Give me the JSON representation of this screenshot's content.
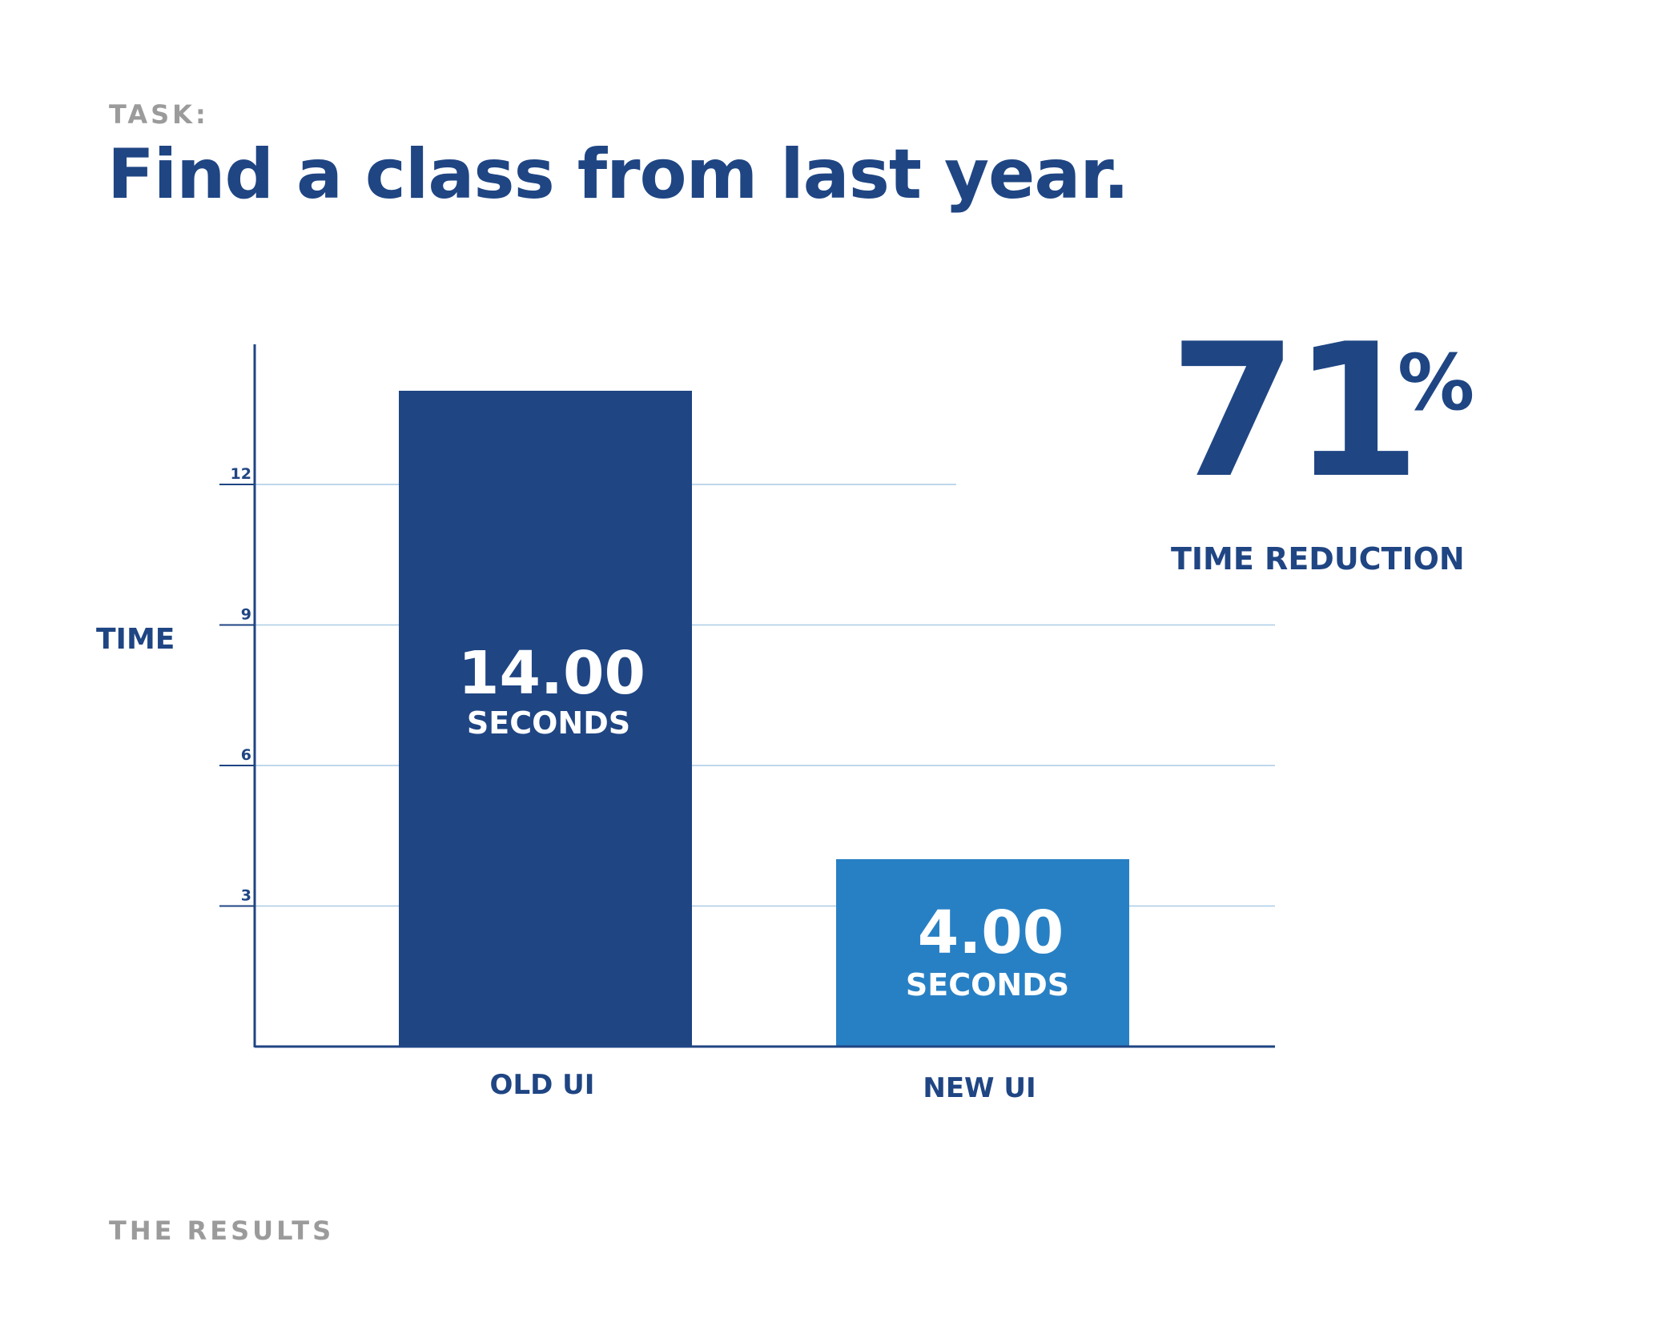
{
  "header": {
    "task_label": "TASK:",
    "title": "Find a class from last year."
  },
  "footer": {
    "label": "THE RESULTS"
  },
  "stat": {
    "value": "71",
    "unit": "%",
    "caption": "TIME REDUCTION"
  },
  "colors": {
    "primary": "#1f4583",
    "accent": "#2880c4",
    "gridline": "#a9cbe6",
    "muted": "#9b9b9b"
  },
  "chart_data": {
    "type": "bar",
    "title": "",
    "xlabel": "",
    "ylabel": "TIME",
    "categories": [
      "OLD UI",
      "NEW UI"
    ],
    "values": [
      14.0,
      4.0
    ],
    "value_labels": [
      "14.00",
      "4.00"
    ],
    "value_unit_label": "SECONDS",
    "bar_colors": [
      "#1f4583",
      "#2880c4"
    ],
    "yticks": [
      3,
      6,
      9,
      12
    ],
    "ylim": [
      0,
      15
    ],
    "grid": true,
    "legend": "none"
  }
}
